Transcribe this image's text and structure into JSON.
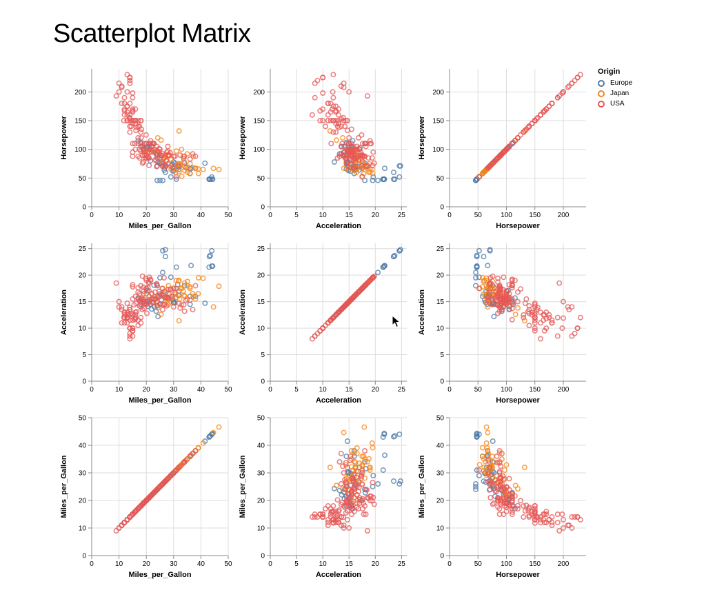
{
  "page": {
    "title": "Scatterplot Matrix"
  },
  "legend": {
    "title": "Origin",
    "items": [
      {
        "label": "Europe",
        "color": "#4c78a8"
      },
      {
        "label": "Japan",
        "color": "#f58518"
      },
      {
        "label": "USA",
        "color": "#e45756"
      }
    ]
  },
  "chart_data": {
    "type": "scatter",
    "grid": true,
    "mark": "hollow-circle",
    "fields": {
      "Horsepower": {
        "domain": [
          0,
          240
        ],
        "ticks": [
          0,
          50,
          100,
          150,
          200
        ]
      },
      "Acceleration": {
        "domain": [
          0,
          26
        ],
        "ticks": [
          0,
          5,
          10,
          15,
          20,
          25
        ]
      },
      "Miles_per_Gallon": {
        "domain": [
          0,
          50
        ],
        "ticks": [
          0,
          10,
          20,
          30,
          40,
          50
        ]
      }
    },
    "rows": [
      "Horsepower",
      "Acceleration",
      "Miles_per_Gallon"
    ],
    "columns": [
      "Miles_per_Gallon",
      "Acceleration",
      "Horsepower"
    ],
    "series": [
      {
        "name": "Europe",
        "color": "#4c78a8",
        "points": [
          [
            26,
            46,
            20.5
          ],
          [
            25,
            46,
            19.5
          ],
          [
            24,
            46,
            18
          ],
          [
            44,
            48,
            21.7
          ],
          [
            43,
            48,
            21.5
          ],
          [
            44.3,
            48,
            21.7
          ],
          [
            31,
            48,
            21.5
          ],
          [
            29,
            52,
            19.6
          ],
          [
            43.4,
            48,
            23.7
          ],
          [
            36,
            58,
            16
          ],
          [
            30,
            67,
            17.5
          ],
          [
            27,
            71,
            24.8
          ],
          [
            26,
            71,
            24.6
          ],
          [
            25,
            76,
            14.5
          ],
          [
            24,
            90,
            14.2
          ],
          [
            23,
            95,
            14
          ],
          [
            22,
            105,
            13.6
          ],
          [
            21,
            110,
            15
          ],
          [
            19,
            102,
            15.5
          ],
          [
            20,
            103,
            15
          ],
          [
            18,
            112,
            14.5
          ],
          [
            17,
            115,
            15.7
          ],
          [
            24,
            71,
            16
          ],
          [
            28,
            75,
            15.5
          ],
          [
            30,
            78,
            14.8
          ],
          [
            32,
            70,
            17
          ],
          [
            34,
            76,
            18
          ],
          [
            36,
            66,
            14.5
          ],
          [
            41.5,
            76,
            14.7
          ],
          [
            38,
            67,
            16
          ],
          [
            29.5,
            74,
            15.5
          ],
          [
            27,
            60,
            23.5
          ],
          [
            31.5,
            71,
            18.2
          ],
          [
            30.5,
            76,
            14.8
          ],
          [
            25.4,
            77,
            16.3
          ],
          [
            21.5,
            80,
            14.5
          ],
          [
            20.3,
            103,
            17.1
          ],
          [
            29.8,
            62,
            15.3
          ],
          [
            44,
            52,
            24.6
          ],
          [
            43.1,
            48,
            23.5
          ],
          [
            36.4,
            67,
            21.8
          ],
          [
            24.3,
            78,
            12.2
          ],
          [
            23.6,
            92,
            13.2
          ],
          [
            30,
            63,
            14.9
          ],
          [
            32,
            65,
            16.2
          ],
          [
            27.2,
            71,
            15.8
          ],
          [
            26.6,
            64,
            16.9
          ],
          [
            20.6,
            105,
            14.1
          ],
          [
            22.8,
            110,
            18.1
          ],
          [
            25.5,
            89,
            15.3
          ]
        ]
      },
      {
        "name": "Japan",
        "color": "#f58518",
        "points": [
          [
            24,
            95,
            15
          ],
          [
            27,
            88,
            14.5
          ],
          [
            27,
            90,
            15.5
          ],
          [
            31,
            65,
            19
          ],
          [
            35,
            69,
            18
          ],
          [
            32,
            61,
            19
          ],
          [
            39,
            66,
            16.5
          ],
          [
            46.6,
            65,
            17.9
          ],
          [
            44.6,
            67,
            14
          ],
          [
            40.8,
            65,
            19.4
          ],
          [
            33,
            53,
            17.5
          ],
          [
            32,
            132,
            11.4
          ],
          [
            28,
            75,
            14.5
          ],
          [
            24,
            97,
            14.9
          ],
          [
            20,
            97,
            16.5
          ],
          [
            22,
            100,
            16.5
          ],
          [
            23,
            96,
            16
          ],
          [
            26,
            79,
            17.5
          ],
          [
            29,
            83,
            16
          ],
          [
            34,
            70,
            18.5
          ],
          [
            36,
            75,
            17.5
          ],
          [
            37,
            68,
            16.5
          ],
          [
            31.6,
            74,
            16.2
          ],
          [
            32.2,
            75,
            15.5
          ],
          [
            32.4,
            72,
            17.5
          ],
          [
            35.1,
            60,
            18.8
          ],
          [
            36,
            58,
            17.8
          ],
          [
            27.9,
            97,
            15.5
          ],
          [
            33.5,
            88,
            17
          ],
          [
            38,
            67,
            15.5
          ],
          [
            30,
            68,
            17.5
          ],
          [
            25.4,
            116,
            12.6
          ],
          [
            24.2,
            120,
            13.8
          ],
          [
            22,
            110,
            15
          ],
          [
            19,
            95,
            15.5
          ],
          [
            29.1,
            65,
            14.9
          ],
          [
            26.4,
            84,
            16.5
          ],
          [
            31.8,
            75,
            18.9
          ],
          [
            37.2,
            88,
            16
          ],
          [
            28.1,
            88,
            18
          ],
          [
            39.1,
            58,
            19.5
          ],
          [
            35,
            92,
            15.5
          ],
          [
            32.9,
            100,
            14.4
          ],
          [
            31,
            97,
            15.8
          ],
          [
            27.2,
            80,
            16.8
          ],
          [
            34.1,
            63,
            16
          ],
          [
            33.8,
            79,
            16.2
          ],
          [
            30.7,
            60,
            16.4
          ]
        ]
      },
      {
        "name": "USA",
        "color": "#e45756",
        "points": [
          [
            18,
            130,
            12
          ],
          [
            15,
            165,
            11.5
          ],
          [
            18,
            150,
            11
          ],
          [
            16,
            150,
            12
          ],
          [
            17,
            140,
            10.5
          ],
          [
            15,
            198,
            10
          ],
          [
            14,
            220,
            9
          ],
          [
            14,
            215,
            8.5
          ],
          [
            14,
            225,
            10
          ],
          [
            15,
            190,
            8.5
          ],
          [
            15,
            170,
            10
          ],
          [
            14,
            160,
            8
          ],
          [
            15,
            150,
            9.5
          ],
          [
            14,
            225,
            10
          ],
          [
            22,
            95,
            15.5
          ],
          [
            18,
            97,
            15.5
          ],
          [
            21,
            85,
            16
          ],
          [
            10,
            215,
            14
          ],
          [
            10,
            200,
            15
          ],
          [
            11,
            210,
            13.5
          ],
          [
            9,
            193,
            18.5
          ],
          [
            13,
            175,
            12
          ],
          [
            12,
            160,
            13
          ],
          [
            13,
            150,
            13
          ],
          [
            14,
            153,
            13.5
          ],
          [
            19,
            100,
            15
          ],
          [
            18,
            105,
            15.5
          ],
          [
            16,
            100,
            16
          ],
          [
            17,
            88,
            15.5
          ],
          [
            19,
            100,
            16.5
          ],
          [
            20,
            90,
            17.5
          ],
          [
            22,
            105,
            16.5
          ],
          [
            18,
            110,
            18
          ],
          [
            21,
            100,
            17
          ],
          [
            13,
            165,
            12.5
          ],
          [
            12,
            180,
            11
          ],
          [
            12,
            170,
            13
          ],
          [
            13,
            175,
            12.5
          ],
          [
            15,
            110,
            18.2
          ],
          [
            13,
            230,
            12
          ],
          [
            17,
            150,
            11.5
          ],
          [
            11,
            180,
            11
          ],
          [
            20,
            110,
            19
          ],
          [
            21,
            72,
            18.5
          ],
          [
            19,
            100,
            17
          ],
          [
            15,
            88,
            17.8
          ],
          [
            31,
            52,
            17.5
          ],
          [
            26,
            75,
            14.5
          ],
          [
            16,
            150,
            12.5
          ],
          [
            14,
            140,
            13.5
          ],
          [
            15,
            145,
            12.5
          ],
          [
            18,
            150,
            14
          ],
          [
            21,
            105,
            15.4
          ],
          [
            20,
            90,
            14.5
          ],
          [
            17,
            120,
            16.8
          ],
          [
            23,
            100,
            15.5
          ],
          [
            24,
            85,
            14.3
          ],
          [
            25,
            86,
            16.5
          ],
          [
            30.5,
            88,
            16.7
          ],
          [
            28,
            90,
            15.7
          ],
          [
            26.5,
            72,
            19.5
          ],
          [
            19.2,
            97,
            14.7
          ],
          [
            18.5,
            105,
            13.5
          ],
          [
            31.9,
            71,
            14.7
          ],
          [
            17.6,
            85,
            16.5
          ],
          [
            22.4,
            110,
            14.9
          ],
          [
            26.8,
            68,
            15.8
          ],
          [
            27.5,
            95,
            14.2
          ],
          [
            29,
            71,
            17.4
          ],
          [
            34.5,
            68,
            15.2
          ],
          [
            33.7,
            84,
            14.4
          ],
          [
            32.4,
            90,
            13.8
          ],
          [
            27.9,
            105,
            15.8
          ],
          [
            23.5,
            80,
            15.5
          ],
          [
            38,
            88,
            18
          ],
          [
            37,
            92,
            13.5
          ],
          [
            26,
            92,
            13.5
          ],
          [
            36,
            83,
            15.3
          ],
          [
            28,
            90,
            17.3
          ],
          [
            34,
            88,
            13.2
          ],
          [
            25,
            90,
            16
          ],
          [
            21.6,
            115,
            19
          ],
          [
            16.2,
            133,
            14.7
          ],
          [
            15.5,
            150,
            14.4
          ],
          [
            14.5,
            140,
            12.8
          ],
          [
            16.5,
            138,
            13.1
          ],
          [
            19.4,
            90,
            14.7
          ],
          [
            20.5,
            95,
            15
          ],
          [
            17.5,
            140,
            14.2
          ],
          [
            18.2,
            135,
            15.5
          ],
          [
            15.8,
            110,
            11.6
          ],
          [
            19.8,
            85,
            19.4
          ],
          [
            20.2,
            85,
            12.8
          ],
          [
            28.4,
            90,
            16.4
          ],
          [
            24.7,
            101,
            16.9
          ],
          [
            29.5,
            68,
            15.9
          ],
          [
            22.5,
            110,
            15.5
          ],
          [
            26.6,
            85,
            14.4
          ],
          [
            20,
            110,
            14.6
          ],
          [
            28.8,
            94,
            17.3
          ],
          [
            13,
            160,
            11
          ],
          [
            12,
            190,
            12
          ],
          [
            14,
            130,
            12.5
          ],
          [
            11,
            208,
            14
          ],
          [
            13,
            150,
            14.7
          ],
          [
            16,
            145,
            13
          ],
          [
            17,
            110,
            17.6
          ],
          [
            18.1,
            120,
            15
          ],
          [
            14,
            150,
            10
          ],
          [
            15,
            95,
            15.5
          ],
          [
            19,
            78,
            17.7
          ],
          [
            26,
            70,
            16.3
          ],
          [
            21.5,
            110,
            19.2
          ],
          [
            20.8,
            85,
            18.7
          ],
          [
            23.9,
            105,
            18.2
          ],
          [
            19.9,
            125,
            17.4
          ],
          [
            27.4,
            80,
            15.8
          ],
          [
            30,
            88,
            14
          ],
          [
            22.3,
            98,
            14.8
          ],
          [
            24.5,
            96,
            16
          ],
          [
            14,
            180,
            11.5
          ],
          [
            16,
            170,
            11.8
          ],
          [
            13,
            200,
            11.9
          ],
          [
            15,
            167,
            9.5
          ],
          [
            17.5,
            100,
            15.2
          ],
          [
            12,
            167,
            12.5
          ],
          [
            19.2,
            110,
            13.7
          ],
          [
            23.2,
            82,
            16.8
          ],
          [
            24,
            92,
            15
          ],
          [
            20.6,
            88,
            17.6
          ],
          [
            11.8,
            150,
            12
          ],
          [
            25.8,
            89,
            17.5
          ],
          [
            18.6,
            76,
            19.8
          ],
          [
            23.8,
            70,
            18.4
          ],
          [
            21.1,
            95,
            19.6
          ],
          [
            25,
            100,
            14.6
          ],
          [
            13.9,
            155,
            13.9
          ],
          [
            18.7,
            90,
            15.3
          ]
        ]
      }
    ]
  }
}
